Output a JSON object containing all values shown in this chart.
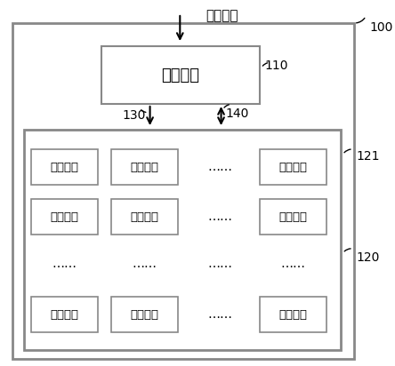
{
  "bg_color": "#ffffff",
  "outer_box_facecolor": "#ffffff",
  "outer_box_edgecolor": "#888888",
  "module_box_facecolor": "#ffffff",
  "module_box_edgecolor": "#888888",
  "text_color": "#000000",
  "label_color": "#000000",
  "title_signal": "标准信号",
  "label_100": "100",
  "label_110": "110",
  "label_130": "130",
  "label_140": "140",
  "label_120": "120",
  "label_121": "121",
  "chip_text": "管理芯片",
  "module_text": "显示模块",
  "ellipsis": "……",
  "fig_w": 4.44,
  "fig_h": 4.12,
  "dpi": 100
}
